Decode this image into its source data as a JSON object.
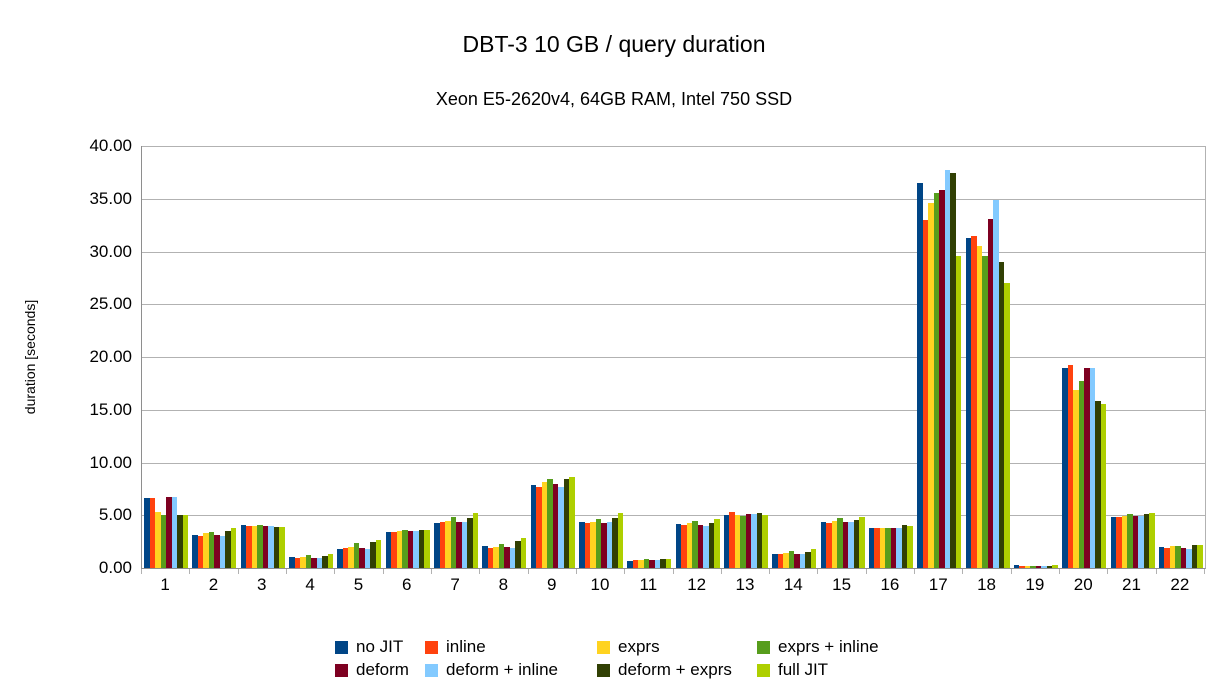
{
  "title": "DBT-3 10 GB / query duration",
  "subtitle": "Xeon E5-2620v4, 64GB RAM, Intel 750 SSD",
  "chart_data": {
    "type": "bar",
    "title": "DBT-3 10 GB / query duration",
    "subtitle": "Xeon E5-2620v4, 64GB RAM, Intel 750 SSD",
    "xlabel": "",
    "ylabel": "duration [seconds]",
    "ylim": [
      0,
      40
    ],
    "ytick_step": 5,
    "ytick_labels": [
      "0.00",
      "5.00",
      "10.00",
      "15.00",
      "20.00",
      "25.00",
      "30.00",
      "35.00",
      "40.00"
    ],
    "grid": true,
    "legend_position": "bottom",
    "categories": [
      "1",
      "2",
      "3",
      "4",
      "5",
      "6",
      "7",
      "8",
      "9",
      "10",
      "11",
      "12",
      "13",
      "14",
      "15",
      "16",
      "17",
      "18",
      "19",
      "20",
      "21",
      "22"
    ],
    "series": [
      {
        "name": "no JIT",
        "color": "#004586",
        "values": [
          6.6,
          3.15,
          4.1,
          1.0,
          1.8,
          3.45,
          4.3,
          2.05,
          7.9,
          4.4,
          0.7,
          4.15,
          5.05,
          1.3,
          4.35,
          3.8,
          36.5,
          31.3,
          0.25,
          19.0,
          4.85,
          2.0
        ]
      },
      {
        "name": "inline",
        "color": "#FF420E",
        "values": [
          6.65,
          3.05,
          3.95,
          0.95,
          1.9,
          3.4,
          4.4,
          1.9,
          7.7,
          4.25,
          0.8,
          4.1,
          5.35,
          1.35,
          4.3,
          3.75,
          33.0,
          31.5,
          0.2,
          19.2,
          4.85,
          1.9
        ]
      },
      {
        "name": "exprs",
        "color": "#FFD320",
        "values": [
          5.3,
          3.3,
          4.0,
          1.0,
          2.0,
          3.5,
          4.5,
          2.0,
          8.2,
          4.4,
          0.8,
          4.3,
          5.0,
          1.4,
          4.45,
          3.75,
          34.6,
          30.5,
          0.2,
          16.9,
          4.9,
          2.1
        ]
      },
      {
        "name": "exprs + inline",
        "color": "#579D1C",
        "values": [
          5.0,
          3.45,
          4.1,
          1.25,
          2.4,
          3.6,
          4.8,
          2.3,
          8.4,
          4.6,
          0.9,
          4.45,
          4.95,
          1.65,
          4.7,
          3.75,
          35.5,
          29.6,
          0.2,
          17.7,
          5.15,
          2.1
        ]
      },
      {
        "name": "deform",
        "color": "#7E0021",
        "values": [
          6.75,
          3.1,
          4.0,
          0.95,
          1.85,
          3.5,
          4.35,
          1.95,
          8.0,
          4.3,
          0.8,
          4.05,
          5.15,
          1.35,
          4.35,
          3.75,
          35.8,
          33.1,
          0.2,
          19.0,
          4.9,
          1.9
        ]
      },
      {
        "name": "deform + inline",
        "color": "#83CAFF",
        "values": [
          6.7,
          3.05,
          3.95,
          0.95,
          1.8,
          3.5,
          4.4,
          1.9,
          7.7,
          4.4,
          0.8,
          4.0,
          5.15,
          1.35,
          4.35,
          3.8,
          37.7,
          34.9,
          0.2,
          18.95,
          4.9,
          1.8
        ]
      },
      {
        "name": "deform + exprs",
        "color": "#314004",
        "values": [
          5.05,
          3.55,
          3.85,
          1.15,
          2.5,
          3.6,
          4.75,
          2.55,
          8.45,
          4.7,
          0.85,
          4.25,
          5.25,
          1.55,
          4.55,
          4.1,
          37.4,
          29.0,
          0.2,
          15.8,
          5.1,
          2.15
        ]
      },
      {
        "name": "full JIT",
        "color": "#AECF00",
        "values": [
          5.0,
          3.8,
          3.9,
          1.3,
          2.7,
          3.65,
          5.2,
          2.8,
          8.6,
          5.2,
          0.9,
          4.65,
          5.05,
          1.8,
          4.8,
          4.0,
          29.6,
          27.0,
          0.25,
          15.5,
          5.2,
          2.2
        ]
      }
    ]
  }
}
